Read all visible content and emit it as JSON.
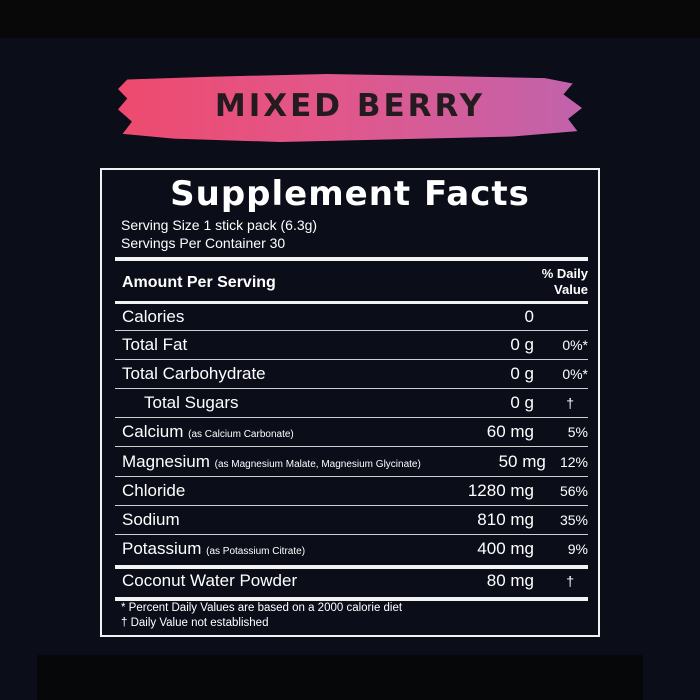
{
  "flavor": "MIXED BERRY",
  "title": "Supplement Facts",
  "serving_size": "Serving Size 1 stick pack (6.3g)",
  "servings_per_container": "Servings Per Container 30",
  "header": {
    "amount": "Amount Per Serving",
    "dv": "% Daily Value"
  },
  "rows": [
    {
      "name": "Calories",
      "note": "",
      "amount": "0",
      "dv": ""
    },
    {
      "name": "Total Fat",
      "note": "",
      "amount": "0 g",
      "dv": "0%*"
    },
    {
      "name": "Total Carbohydrate",
      "note": "",
      "amount": "0 g",
      "dv": "0%*"
    },
    {
      "name": "Total Sugars",
      "note": "",
      "amount": "0 g",
      "dv": "†"
    },
    {
      "name": "Calcium",
      "note": "(as Calcium Carbonate)",
      "amount": "60 mg",
      "dv": "5%"
    },
    {
      "name": "Magnesium",
      "note": "(as Magnesium Malate, Magnesium Glycinate)",
      "amount": "50 mg",
      "dv": "12%"
    },
    {
      "name": "Chloride",
      "note": "",
      "amount": "1280 mg",
      "dv": "56%"
    },
    {
      "name": "Sodium",
      "note": "",
      "amount": "810 mg",
      "dv": "35%"
    },
    {
      "name": "Potassium",
      "note": "(as Potassium Citrate)",
      "amount": "400 mg",
      "dv": "9%"
    },
    {
      "name": "Coconut Water Powder",
      "note": "",
      "amount": "80 mg",
      "dv": "†"
    }
  ],
  "footnotes": [
    "* Percent Daily Values are based on a 2000 calorie diet",
    "† Daily Value not established"
  ],
  "colors": {
    "background": "#0b0d19",
    "brush_start": "#ee4a6e",
    "brush_end": "#c163ac"
  }
}
